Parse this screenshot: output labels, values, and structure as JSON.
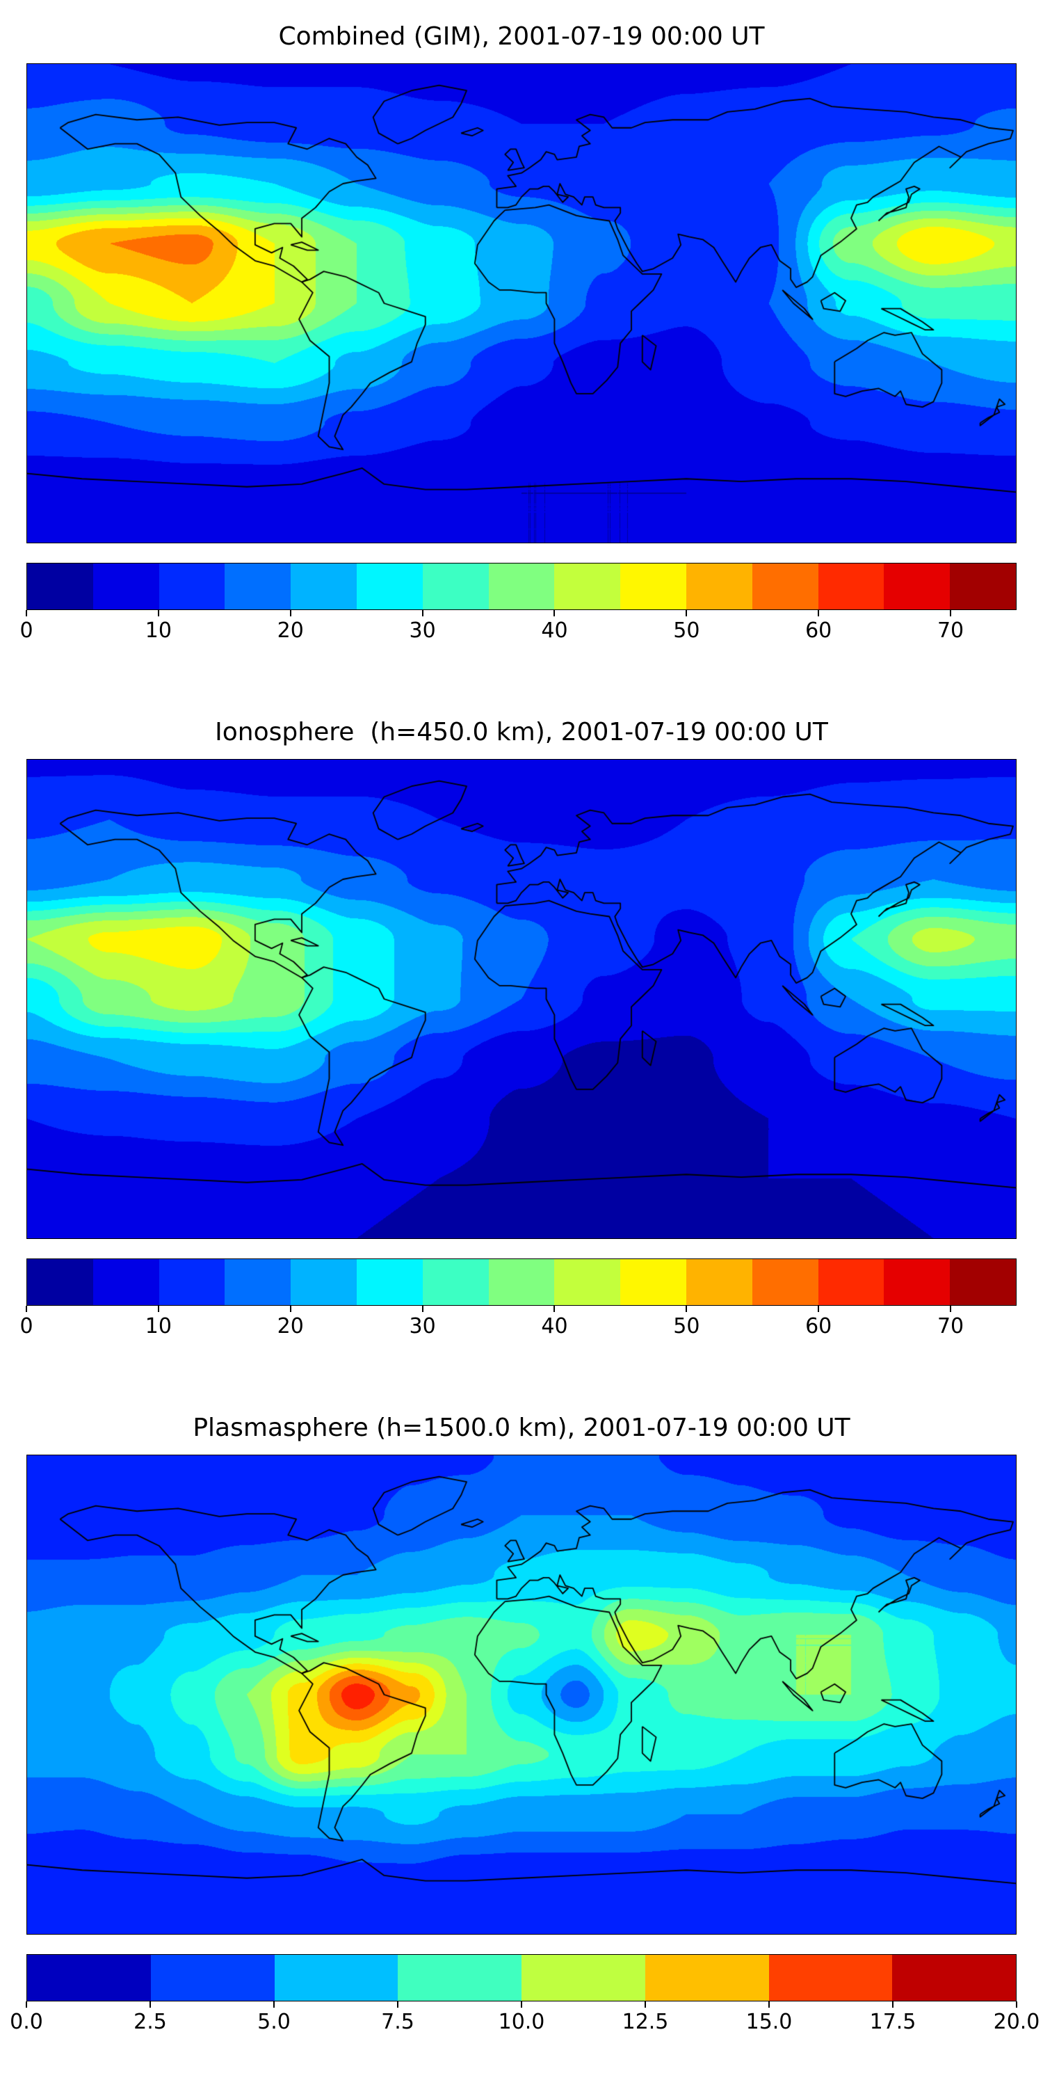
{
  "page": {
    "background": "#ffffff",
    "accent_colormap": "jet"
  },
  "chart_data": [
    {
      "type": "heatmap",
      "title": "Combined (GIM), 2001-07-19 00:00 UT",
      "colormap": "jet",
      "projection": "equirectangular",
      "vmin": 0,
      "vmax": 75,
      "contour_step": 5,
      "colorbar_step": 5,
      "colorbar_ticks": [
        0,
        10,
        20,
        30,
        40,
        50,
        60,
        70
      ],
      "colorbar_tick_labels": [
        "0",
        "10",
        "20",
        "30",
        "40",
        "50",
        "60",
        "70"
      ],
      "lat": [
        90,
        67.5,
        45,
        22.5,
        0,
        -22.5,
        -45,
        -67.5,
        -90
      ],
      "lon": [
        -180,
        -150,
        -120,
        -90,
        -60,
        -30,
        0,
        30,
        60,
        90,
        120,
        150,
        180
      ],
      "values": [
        [
          10,
          10,
          9,
          9,
          9,
          8,
          8,
          8,
          9,
          9,
          10,
          10,
          10
        ],
        [
          16,
          18,
          14,
          12,
          12,
          11,
          10,
          10,
          11,
          12,
          13,
          14,
          16
        ],
        [
          22,
          24,
          26,
          25,
          20,
          17,
          14,
          13,
          13,
          15,
          22,
          24,
          22
        ],
        [
          48,
          55,
          57,
          45,
          35,
          27,
          22,
          16,
          12,
          14,
          38,
          50,
          44
        ],
        [
          32,
          45,
          50,
          45,
          35,
          28,
          22,
          14,
          11,
          15,
          26,
          32,
          32
        ],
        [
          24,
          26,
          28,
          30,
          24,
          17,
          11,
          8,
          8,
          13,
          17,
          20,
          22
        ],
        [
          14,
          15,
          16,
          17,
          14,
          11,
          8,
          7,
          7,
          9,
          11,
          13,
          14
        ],
        [
          7,
          7,
          8,
          8,
          7,
          6,
          5,
          5,
          5,
          6,
          6,
          7,
          7
        ],
        [
          5,
          5,
          5,
          5,
          5,
          5,
          5,
          5,
          5,
          5,
          5,
          5,
          5
        ]
      ]
    },
    {
      "type": "heatmap",
      "title": "Ionosphere  (h=450.0 km), 2001-07-19 00:00 UT",
      "colormap": "jet",
      "projection": "equirectangular",
      "vmin": 0,
      "vmax": 75,
      "contour_step": 5,
      "colorbar_step": 5,
      "colorbar_ticks": [
        0,
        10,
        20,
        30,
        40,
        50,
        60,
        70
      ],
      "colorbar_tick_labels": [
        "0",
        "10",
        "20",
        "30",
        "40",
        "50",
        "60",
        "70"
      ],
      "lat": [
        90,
        67.5,
        45,
        22.5,
        0,
        -22.5,
        -45,
        -67.5,
        -90
      ],
      "lon": [
        -180,
        -150,
        -120,
        -90,
        -60,
        -30,
        0,
        30,
        60,
        90,
        120,
        150,
        180
      ],
      "values": [
        [
          9,
          9,
          8,
          8,
          8,
          8,
          7,
          7,
          8,
          8,
          9,
          9,
          9
        ],
        [
          14,
          15,
          12,
          11,
          11,
          10,
          9,
          9,
          10,
          11,
          12,
          13,
          14
        ],
        [
          18,
          20,
          22,
          21,
          17,
          14,
          12,
          11,
          11,
          13,
          18,
          20,
          18
        ],
        [
          40,
          46,
          48,
          38,
          28,
          21,
          16,
          12,
          9,
          11,
          30,
          42,
          38
        ],
        [
          26,
          38,
          42,
          38,
          28,
          21,
          15,
          9,
          7,
          11,
          20,
          26,
          26
        ],
        [
          18,
          20,
          22,
          24,
          18,
          11,
          6,
          4,
          4,
          8,
          12,
          15,
          17
        ],
        [
          10,
          11,
          12,
          13,
          10,
          7,
          4,
          3,
          3,
          5,
          7,
          9,
          10
        ],
        [
          6,
          6,
          6,
          6,
          6,
          5,
          4,
          4,
          4,
          5,
          5,
          6,
          6
        ],
        [
          5,
          5,
          5,
          5,
          5,
          4,
          4,
          4,
          4,
          4,
          4,
          5,
          5
        ]
      ]
    },
    {
      "type": "heatmap",
      "title": "Plasmasphere (h=1500.0 km), 2001-07-19 00:00 UT",
      "colormap": "jet",
      "projection": "equirectangular",
      "vmin": 0,
      "vmax": 20,
      "contour_step": 1.25,
      "colorbar_step": 2.5,
      "colorbar_ticks": [
        0,
        2.5,
        5,
        7.5,
        10,
        12.5,
        15,
        17.5,
        20
      ],
      "colorbar_tick_labels": [
        "0.0",
        "2.5",
        "5.0",
        "7.5",
        "10.0",
        "12.5",
        "15.0",
        "17.5",
        "20.0"
      ],
      "lat": [
        90,
        67.5,
        45,
        22.5,
        0,
        -22.5,
        -45,
        -67.5,
        -90
      ],
      "lon": [
        -180,
        -160,
        -140,
        -120,
        -100,
        -80,
        -60,
        -40,
        -20,
        0,
        20,
        40,
        60,
        80,
        100,
        120,
        140,
        160,
        180
      ],
      "values": [
        [
          3,
          3,
          3,
          3,
          3,
          3,
          3,
          3.5,
          3.5,
          4,
          4,
          4,
          3.5,
          3.5,
          3,
          3,
          3,
          3,
          3
        ],
        [
          2.5,
          2.5,
          3,
          3,
          3,
          3,
          3.5,
          4,
          4.5,
          5,
          5,
          5,
          4.5,
          4,
          4,
          3.5,
          3,
          3,
          2.5
        ],
        [
          4,
          4,
          4,
          4,
          4.5,
          5,
          5,
          5.5,
          6,
          6.5,
          7,
          7,
          7,
          6.5,
          6,
          5.5,
          5,
          4.5,
          4
        ],
        [
          5.5,
          6,
          6,
          6.5,
          7,
          8,
          8.5,
          9,
          9.5,
          9,
          8,
          12,
          11,
          9.5,
          10,
          10,
          8,
          7,
          6
        ],
        [
          6,
          6,
          6.5,
          8,
          10,
          13,
          17,
          14,
          10,
          7,
          4.5,
          8,
          9,
          9.5,
          10,
          10,
          8.5,
          7,
          6.5
        ],
        [
          5.5,
          5.5,
          6,
          7,
          9,
          13,
          12,
          10,
          10,
          9,
          8.5,
          8,
          8,
          7.5,
          7,
          7,
          6.5,
          6,
          5.5
        ],
        [
          4,
          4,
          4.5,
          5,
          5.5,
          6,
          6,
          6.5,
          6,
          5.5,
          5.5,
          5.5,
          5,
          5,
          4.5,
          4.5,
          4,
          4,
          4
        ],
        [
          3,
          2.5,
          2.5,
          2.5,
          3,
          3,
          3.5,
          3.5,
          3,
          3,
          3,
          3,
          3,
          3,
          3,
          2.5,
          2.5,
          2.5,
          3
        ],
        [
          3,
          3,
          3,
          3,
          3,
          3,
          3,
          3,
          3,
          3,
          3,
          3,
          3,
          3,
          3,
          3,
          3,
          3,
          3
        ]
      ]
    }
  ]
}
